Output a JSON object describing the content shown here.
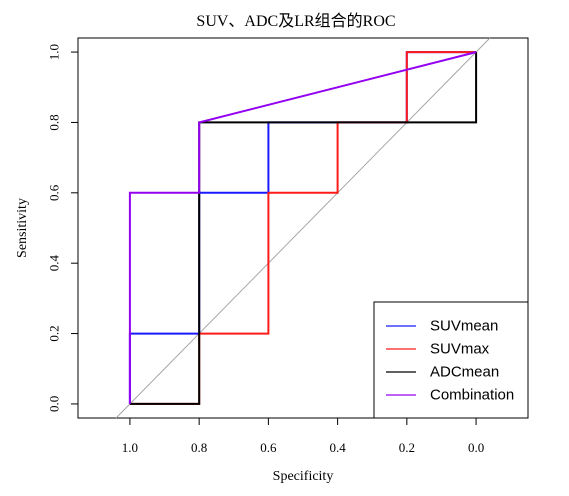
{
  "chart_data": {
    "type": "line",
    "title": "SUV、ADC及LR组合的ROC",
    "xlabel": "Specificity",
    "ylabel": "Sensitivity",
    "xlim": [
      1.15,
      -0.15
    ],
    "ylim": [
      -0.04,
      1.04
    ],
    "x_ticks": [
      1.0,
      0.8,
      0.6,
      0.4,
      0.2,
      0.0
    ],
    "x_tick_labels": [
      "1.0",
      "0.8",
      "0.6",
      "0.4",
      "0.2",
      "0.0"
    ],
    "y_ticks": [
      0.0,
      0.2,
      0.4,
      0.6,
      0.8,
      1.0
    ],
    "y_tick_labels": [
      "0.0",
      "0.2",
      "0.4",
      "0.6",
      "0.8",
      "1.0"
    ],
    "grid": false,
    "legend_position": "bottom-right",
    "reference_line": {
      "color": "#a6a6a6",
      "from": [
        1.0,
        0.0
      ],
      "to": [
        0.0,
        1.0
      ]
    },
    "series": [
      {
        "name": "SUVmean",
        "color": "#1a1aff",
        "x": [
          1.0,
          1.0,
          0.8,
          0.8,
          0.6,
          0.6,
          0.2,
          0.2,
          0.0,
          0.0
        ],
        "y": [
          0.0,
          0.2,
          0.2,
          0.6,
          0.6,
          0.8,
          0.8,
          1.0,
          1.0,
          1.0
        ]
      },
      {
        "name": "SUVmax",
        "color": "#ff1a1a",
        "x": [
          1.0,
          0.8,
          0.8,
          0.6,
          0.6,
          0.4,
          0.4,
          0.2,
          0.2,
          0.0
        ],
        "y": [
          0.0,
          0.0,
          0.2,
          0.2,
          0.6,
          0.6,
          0.8,
          0.8,
          1.0,
          1.0
        ]
      },
      {
        "name": "ADCmean",
        "color": "#000000",
        "x": [
          1.0,
          0.8,
          0.8,
          0.0,
          0.0
        ],
        "y": [
          0.0,
          0.0,
          0.8,
          0.8,
          1.0
        ]
      },
      {
        "name": "Combination",
        "color": "#9400f0",
        "x": [
          1.0,
          1.0,
          0.8,
          0.8,
          0.0
        ],
        "y": [
          0.0,
          0.6,
          0.6,
          0.8,
          1.0
        ]
      }
    ]
  }
}
